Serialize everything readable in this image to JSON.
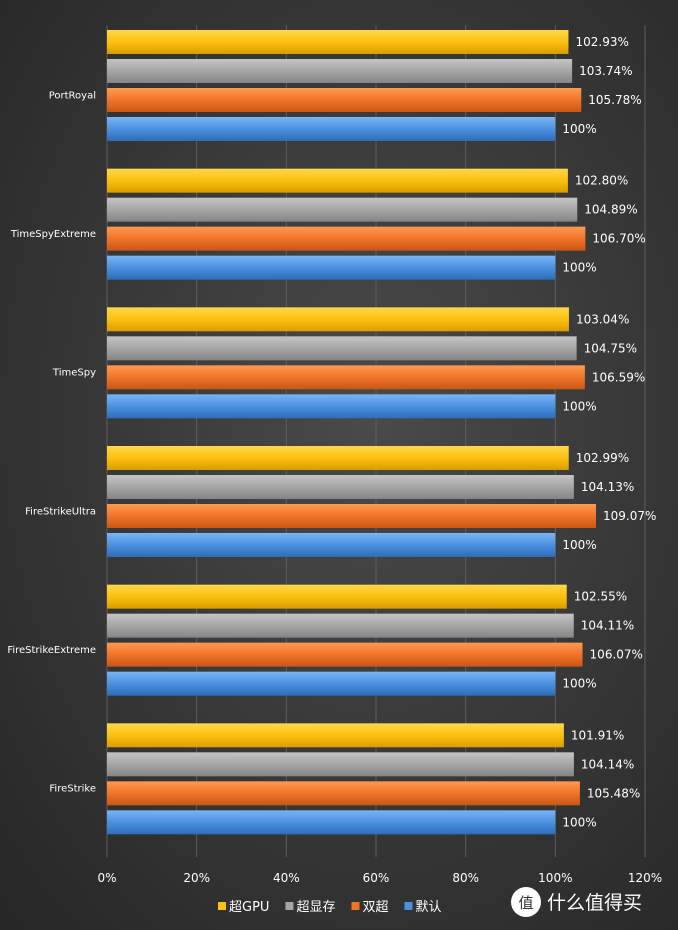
{
  "chart_data": {
    "type": "bar",
    "orientation": "horizontal",
    "categories": [
      "PortRoyal",
      "TimeSpyExtreme",
      "TimeSpy",
      "FireStrikeUltra",
      "FireStrikeExtreme",
      "FireStrike"
    ],
    "series": [
      {
        "name": "超GPU",
        "color": "#fcc010",
        "values": [
          102.93,
          102.8,
          103.04,
          102.99,
          102.55,
          101.91
        ],
        "labels": [
          "102.93%",
          "102.80%",
          "103.04%",
          "102.99%",
          "102.55%",
          "101.91%"
        ]
      },
      {
        "name": "超显存",
        "color": "#a5a5a5",
        "values": [
          103.74,
          104.89,
          104.75,
          104.13,
          104.11,
          104.14
        ],
        "labels": [
          "103.74%",
          "104.89%",
          "104.75%",
          "104.13%",
          "104.11%",
          "104.14%"
        ]
      },
      {
        "name": "双超",
        "color": "#f07428",
        "values": [
          105.78,
          106.7,
          106.59,
          109.07,
          106.07,
          105.48
        ],
        "labels": [
          "105.78%",
          "106.70%",
          "106.59%",
          "109.07%",
          "106.07%",
          "105.48%"
        ]
      },
      {
        "name": "默认",
        "color": "#4a90e0",
        "values": [
          100,
          100,
          100,
          100,
          100,
          100
        ],
        "labels": [
          "100%",
          "100%",
          "100%",
          "100%",
          "100%",
          "100%"
        ]
      }
    ],
    "x_ticks": [
      "0%",
      "20%",
      "40%",
      "60%",
      "80%",
      "100%",
      "120%"
    ],
    "xlim": [
      0,
      120
    ],
    "grid": true,
    "legend": "bottom",
    "title": "",
    "xlabel": "",
    "ylabel": ""
  },
  "watermark": {
    "text": "什么值得买",
    "logo_glyph": "值"
  }
}
